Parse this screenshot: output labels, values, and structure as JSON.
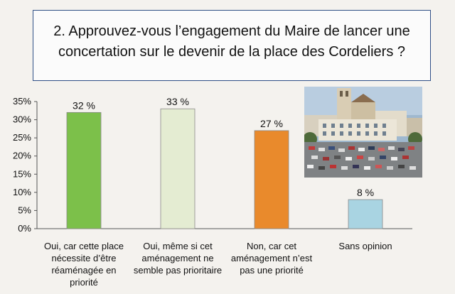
{
  "chart_data": {
    "type": "bar",
    "title": "2. Approuvez-vous l’engagement du Maire de lancer une concertation sur le devenir de la place des Cordeliers ?",
    "categories": [
      "Oui, car cette place nécessite d’être réaménagée en priorité",
      "Oui, même si cet aménagement ne semble pas prioritaire",
      "Non, car cet aménagement n’est pas une priorité",
      "Sans opinion"
    ],
    "values": [
      32,
      33,
      27,
      8
    ],
    "data_labels": [
      "32 %",
      "33 %",
      "27 %",
      "8 %"
    ],
    "yticks": [
      "0%",
      "5%",
      "10%",
      "15%",
      "20%",
      "25%",
      "30%",
      "35%"
    ],
    "ylim": [
      0,
      35
    ],
    "grid": false,
    "colors": [
      "#7cc04a",
      "#e4ecd2",
      "#e98a2c",
      "#a9d4e2"
    ]
  }
}
